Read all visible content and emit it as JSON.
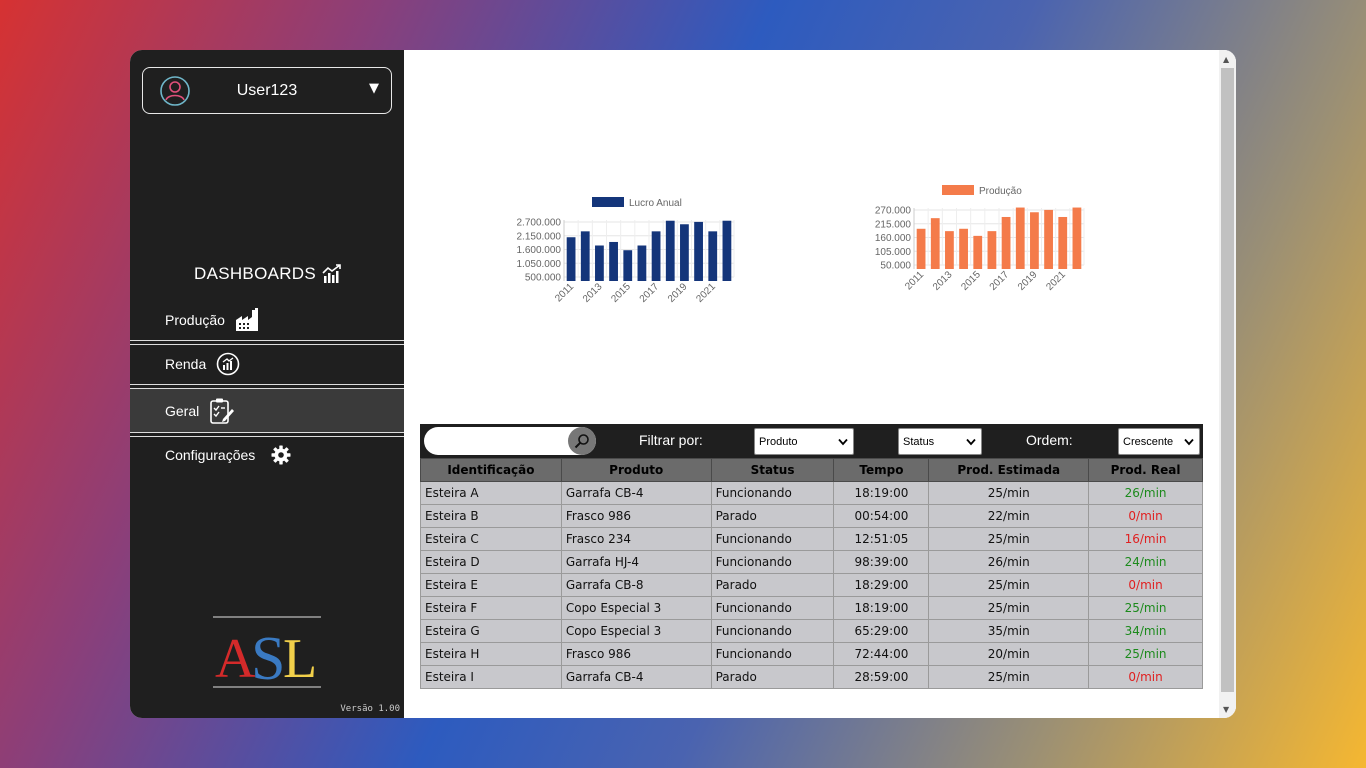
{
  "user": {
    "name": "User123"
  },
  "sidebar": {
    "dashboards_title": "DASHBOARDS",
    "items": [
      {
        "label": "Produção",
        "icon": "factory-icon"
      },
      {
        "label": "Renda",
        "icon": "income-icon"
      },
      {
        "label": "Geral",
        "icon": "clipboard-icon",
        "active": true
      },
      {
        "label": "Configurações",
        "icon": "gear-icon"
      }
    ],
    "logo_text": "ASL",
    "version": "Versão 1.00"
  },
  "chart_data": [
    {
      "type": "bar",
      "legend": "Lucro Anual",
      "color": "#14357a",
      "categories": [
        "2011",
        "2012",
        "2013",
        "2014",
        "2015",
        "2016",
        "2017",
        "2018",
        "2019",
        "2020",
        "2021",
        "2022"
      ],
      "values": [
        2100000,
        2350000,
        1750000,
        1900000,
        1550000,
        1750000,
        2350000,
        2800000,
        2650000,
        2750000,
        2350000,
        2800000
      ],
      "yticks": [
        "2.700.000",
        "2.150.000",
        "1.600.000",
        "1.050.000",
        "500.000"
      ],
      "ylim": [
        500000,
        3000000
      ],
      "xticks": [
        "2011",
        "2013",
        "2015",
        "2017",
        "2019",
        "2021"
      ]
    },
    {
      "type": "bar",
      "legend": "Produção",
      "color": "#f47b4a",
      "categories": [
        "2011",
        "2012",
        "2013",
        "2014",
        "2015",
        "2016",
        "2017",
        "2018",
        "2019",
        "2020",
        "2021",
        "2022"
      ],
      "values": [
        195000,
        240000,
        185000,
        195000,
        165000,
        185000,
        245000,
        285000,
        265000,
        275000,
        245000,
        285000
      ],
      "yticks": [
        "270.000",
        "215.000",
        "160.000",
        "105.000",
        "50.000"
      ],
      "ylim": [
        50000,
        300000
      ],
      "xticks": [
        "2011",
        "2013",
        "2015",
        "2017",
        "2019",
        "2021"
      ]
    }
  ],
  "toolbar": {
    "search_placeholder": "",
    "filter_label": "Filtrar por:",
    "product_select": "Produto",
    "status_select": "Status",
    "order_label": "Ordem:",
    "order_select": "Crescente"
  },
  "table": {
    "headers": [
      "Identificação",
      "Produto",
      "Status",
      "Tempo",
      "Prod. Estimada",
      "Prod. Real"
    ],
    "rows": [
      [
        "Esteira A",
        "Garrafa CB-4",
        "Funcionando",
        "18:19:00",
        "25/min",
        "26/min"
      ],
      [
        "Esteira B",
        "Frasco 986",
        "Parado",
        "00:54:00",
        "22/min",
        "0/min"
      ],
      [
        "Esteira C",
        "Frasco 234",
        "Funcionando",
        "12:51:05",
        "25/min",
        "16/min"
      ],
      [
        "Esteira D",
        "Garrafa HJ-4",
        "Funcionando",
        "98:39:00",
        "26/min",
        "24/min"
      ],
      [
        "Esteira E",
        "Garrafa CB-8",
        "Parado",
        "18:29:00",
        "25/min",
        "0/min"
      ],
      [
        "Esteira F",
        "Copo Especial 3",
        "Funcionando",
        "18:19:00",
        "25/min",
        "25/min"
      ],
      [
        "Esteira G",
        "Copo Especial 3",
        "Funcionando",
        "65:29:00",
        "35/min",
        "34/min"
      ],
      [
        "Esteira H",
        "Frasco 986",
        "Funcionando",
        "72:44:00",
        "20/min",
        "25/min"
      ],
      [
        "Esteira I",
        "Garrafa CB-4",
        "Parado",
        "28:59:00",
        "25/min",
        "0/min"
      ]
    ],
    "real_status": [
      "good",
      "bad",
      "bad",
      "good",
      "bad",
      "good",
      "good",
      "good",
      "bad"
    ]
  }
}
